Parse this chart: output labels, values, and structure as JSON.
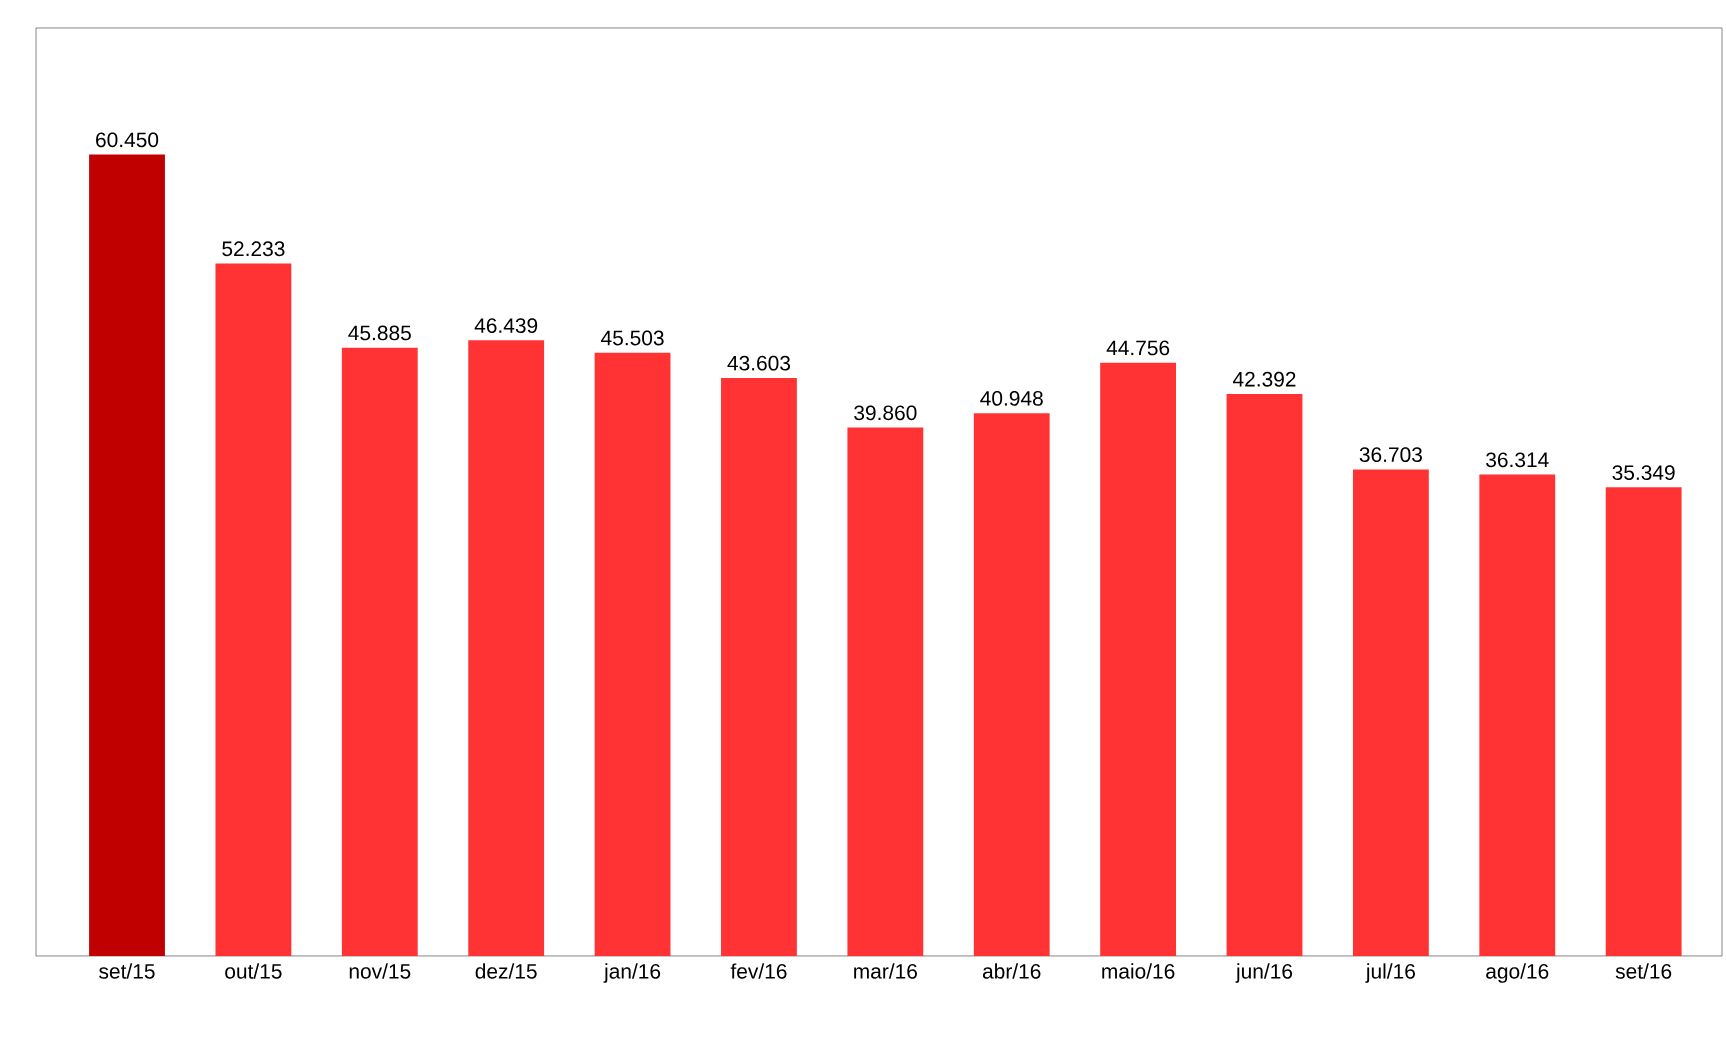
{
  "chart_data": {
    "type": "bar",
    "categories": [
      "set/15",
      "out/15",
      "nov/15",
      "dez/15",
      "jan/16",
      "fev/16",
      "mar/16",
      "abr/16",
      "maio/16",
      "jun/16",
      "jul/16",
      "ago/16",
      "set/16"
    ],
    "values": [
      60450,
      52233,
      45885,
      46439,
      45503,
      43603,
      39860,
      40948,
      44756,
      42392,
      36703,
      36314,
      35349
    ],
    "value_labels": [
      "60.450",
      "52.233",
      "45.885",
      "46.439",
      "45.503",
      "43.603",
      "39.860",
      "40.948",
      "44.756",
      "42.392",
      "36.703",
      "36.314",
      "35.349"
    ],
    "colors": [
      "#c00000",
      "#ff3333",
      "#ff3333",
      "#ff3333",
      "#ff3333",
      "#ff3333",
      "#ff3333",
      "#ff3333",
      "#ff3333",
      "#ff3333",
      "#ff3333",
      "#ff3333",
      "#ff3333"
    ],
    "ylim": [
      0,
      70000
    ]
  }
}
